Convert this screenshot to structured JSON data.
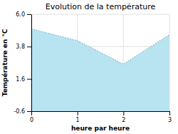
{
  "chart_data": {
    "type": "area",
    "title": "Evolution de la température",
    "xlabel": "heure par heure",
    "ylabel": "Température en °C",
    "x": [
      0,
      1,
      2,
      3
    ],
    "values": [
      5.0,
      4.2,
      2.6,
      4.6
    ],
    "color": "#B8E4F2",
    "line_style": "dotted",
    "xlim": [
      0,
      3
    ],
    "ylim": [
      -0.6,
      6.0
    ],
    "xticks": [
      0,
      1,
      2,
      3
    ],
    "yticks": [
      -0.6,
      1.6,
      3.8,
      {
        "value": 6.0,
        "label": "6.0"
      }
    ],
    "grid": true
  }
}
